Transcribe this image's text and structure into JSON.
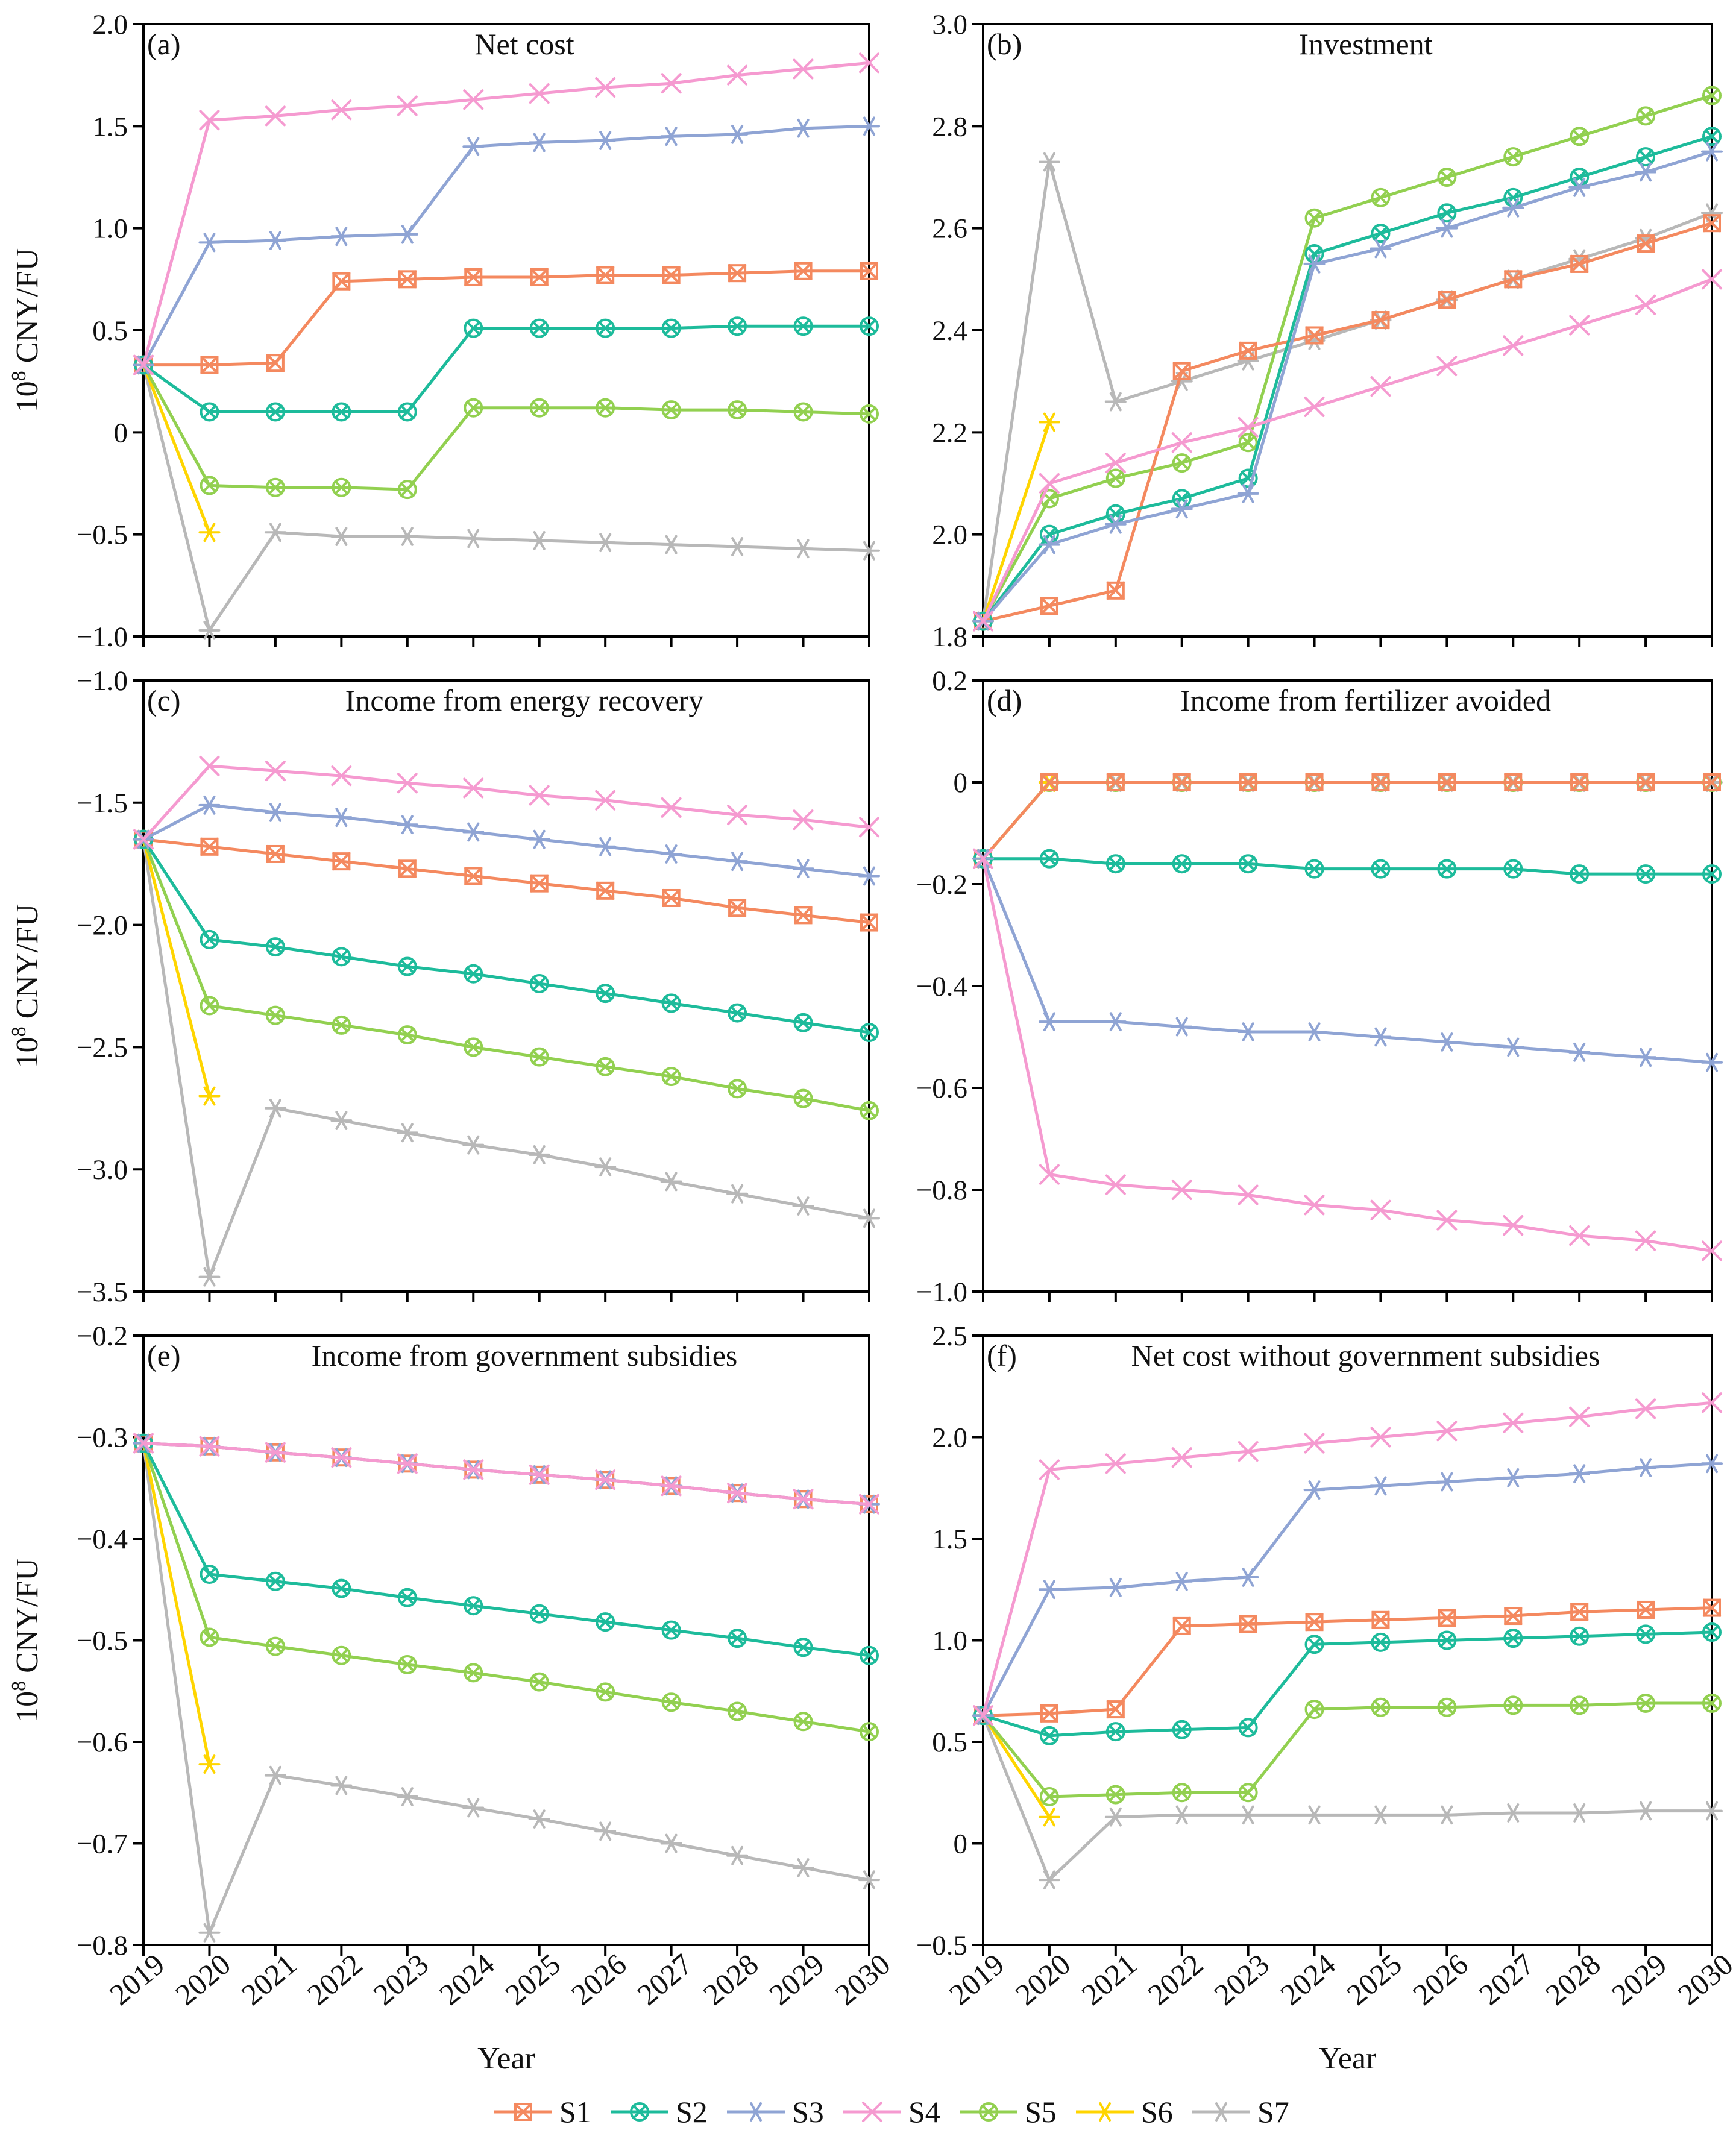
{
  "figure": {
    "xlabel": "Year",
    "ylabel_base": "10",
    "ylabel_sup": "8",
    "ylabel_unit": " CNY/FU"
  },
  "series_colors": {
    "S1": "#F4895F",
    "S2": "#1DBB9B",
    "S3": "#8FA4D4",
    "S4": "#F59AD0",
    "S5": "#92D050",
    "S6": "#FFD500",
    "S7": "#B8B8B8"
  },
  "series_markers": {
    "S1": "box-x",
    "S2": "circle-x",
    "S3": "star",
    "S4": "x",
    "S5": "circle-x",
    "S6": "star",
    "S7": "star"
  },
  "legend": [
    "S1",
    "S2",
    "S3",
    "S4",
    "S5",
    "S6",
    "S7"
  ],
  "chart_data": [
    {
      "panel": "a",
      "tag": "(a)",
      "title": "Net cost",
      "type": "line",
      "x": [
        2019,
        2020,
        2021,
        2022,
        2023,
        2024,
        2025,
        2026,
        2027,
        2028,
        2029,
        2030
      ],
      "ylim": [
        -1.0,
        2.0
      ],
      "yticks": [
        -1.0,
        -0.5,
        0,
        0.5,
        1.0,
        1.5,
        2.0
      ],
      "ytick_labels": [
        "−1.0",
        "−0.5",
        "0",
        "0.5",
        "1.0",
        "1.5",
        "2.0"
      ],
      "series": [
        {
          "name": "S1",
          "values": [
            0.33,
            0.33,
            0.34,
            0.74,
            0.75,
            0.76,
            0.76,
            0.77,
            0.77,
            0.78,
            0.79,
            0.79
          ]
        },
        {
          "name": "S2",
          "values": [
            0.33,
            0.1,
            0.1,
            0.1,
            0.1,
            0.51,
            0.51,
            0.51,
            0.51,
            0.52,
            0.52,
            0.52
          ]
        },
        {
          "name": "S3",
          "values": [
            0.33,
            0.93,
            0.94,
            0.96,
            0.97,
            1.4,
            1.42,
            1.43,
            1.45,
            1.46,
            1.49,
            1.5
          ]
        },
        {
          "name": "S4",
          "values": [
            0.33,
            1.53,
            1.55,
            1.58,
            1.6,
            1.63,
            1.66,
            1.69,
            1.71,
            1.75,
            1.78,
            1.81
          ]
        },
        {
          "name": "S5",
          "values": [
            0.33,
            -0.26,
            -0.27,
            -0.27,
            -0.28,
            0.12,
            0.12,
            0.12,
            0.11,
            0.11,
            0.1,
            0.09
          ]
        },
        {
          "name": "S6",
          "values": [
            0.33,
            -0.49,
            null,
            null,
            null,
            null,
            null,
            null,
            null,
            null,
            null,
            null
          ]
        },
        {
          "name": "S7",
          "values": [
            0.33,
            -0.97,
            -0.49,
            -0.51,
            -0.51,
            -0.52,
            -0.53,
            -0.54,
            -0.55,
            -0.56,
            -0.57,
            -0.58
          ]
        }
      ]
    },
    {
      "panel": "b",
      "tag": "(b)",
      "title": "Investment",
      "type": "line",
      "x": [
        2019,
        2020,
        2021,
        2022,
        2023,
        2024,
        2025,
        2026,
        2027,
        2028,
        2029,
        2030
      ],
      "ylim": [
        1.8,
        3.0
      ],
      "yticks": [
        1.8,
        2.0,
        2.2,
        2.4,
        2.6,
        2.8,
        3.0
      ],
      "ytick_labels": [
        "1.8",
        "2.0",
        "2.2",
        "2.4",
        "2.6",
        "2.8",
        "3.0"
      ],
      "series": [
        {
          "name": "S1",
          "values": [
            1.83,
            1.86,
            1.89,
            2.32,
            2.36,
            2.39,
            2.42,
            2.46,
            2.5,
            2.53,
            2.57,
            2.61
          ]
        },
        {
          "name": "S2",
          "values": [
            1.83,
            2.0,
            2.04,
            2.07,
            2.11,
            2.55,
            2.59,
            2.63,
            2.66,
            2.7,
            2.74,
            2.78
          ]
        },
        {
          "name": "S3",
          "values": [
            1.83,
            1.98,
            2.02,
            2.05,
            2.08,
            2.53,
            2.56,
            2.6,
            2.64,
            2.68,
            2.71,
            2.75
          ]
        },
        {
          "name": "S4",
          "values": [
            1.83,
            2.1,
            2.14,
            2.18,
            2.21,
            2.25,
            2.29,
            2.33,
            2.37,
            2.41,
            2.45,
            2.5
          ]
        },
        {
          "name": "S5",
          "values": [
            1.83,
            2.07,
            2.11,
            2.14,
            2.18,
            2.62,
            2.66,
            2.7,
            2.74,
            2.78,
            2.82,
            2.86
          ]
        },
        {
          "name": "S6",
          "values": [
            1.83,
            2.22,
            null,
            null,
            null,
            null,
            null,
            null,
            null,
            null,
            null,
            null
          ]
        },
        {
          "name": "S7",
          "values": [
            1.83,
            2.73,
            2.26,
            2.3,
            2.34,
            2.38,
            2.42,
            2.46,
            2.5,
            2.54,
            2.58,
            2.63
          ]
        }
      ]
    },
    {
      "panel": "c",
      "tag": "(c)",
      "title": "Income from energy recovery",
      "type": "line",
      "x": [
        2019,
        2020,
        2021,
        2022,
        2023,
        2024,
        2025,
        2026,
        2027,
        2028,
        2029,
        2030
      ],
      "ylim": [
        -3.5,
        -1.0
      ],
      "yticks": [
        -3.5,
        -3.0,
        -2.5,
        -2.0,
        -1.5,
        -1.0
      ],
      "ytick_labels": [
        "−3.5",
        "−3.0",
        "−2.5",
        "−2.0",
        "−1.5",
        "−1.0"
      ],
      "series": [
        {
          "name": "S1",
          "values": [
            -1.65,
            -1.68,
            -1.71,
            -1.74,
            -1.77,
            -1.8,
            -1.83,
            -1.86,
            -1.89,
            -1.93,
            -1.96,
            -1.99
          ]
        },
        {
          "name": "S2",
          "values": [
            -1.65,
            -2.06,
            -2.09,
            -2.13,
            -2.17,
            -2.2,
            -2.24,
            -2.28,
            -2.32,
            -2.36,
            -2.4,
            -2.44
          ]
        },
        {
          "name": "S3",
          "values": [
            -1.65,
            -1.51,
            -1.54,
            -1.56,
            -1.59,
            -1.62,
            -1.65,
            -1.68,
            -1.71,
            -1.74,
            -1.77,
            -1.8
          ]
        },
        {
          "name": "S4",
          "values": [
            -1.65,
            -1.35,
            -1.37,
            -1.39,
            -1.42,
            -1.44,
            -1.47,
            -1.49,
            -1.52,
            -1.55,
            -1.57,
            -1.6
          ]
        },
        {
          "name": "S5",
          "values": [
            -1.65,
            -2.33,
            -2.37,
            -2.41,
            -2.45,
            -2.5,
            -2.54,
            -2.58,
            -2.62,
            -2.67,
            -2.71,
            -2.76
          ]
        },
        {
          "name": "S6",
          "values": [
            -1.65,
            -2.7,
            null,
            null,
            null,
            null,
            null,
            null,
            null,
            null,
            null,
            null
          ]
        },
        {
          "name": "S7",
          "values": [
            -1.65,
            -3.44,
            -2.75,
            -2.8,
            -2.85,
            -2.9,
            -2.94,
            -2.99,
            -3.05,
            -3.1,
            -3.15,
            -3.2
          ]
        }
      ]
    },
    {
      "panel": "d",
      "tag": "(d)",
      "title": "Income from fertilizer avoided",
      "type": "line",
      "x": [
        2019,
        2020,
        2021,
        2022,
        2023,
        2024,
        2025,
        2026,
        2027,
        2028,
        2029,
        2030
      ],
      "ylim": [
        -1.0,
        0.2
      ],
      "yticks": [
        -1.0,
        -0.8,
        -0.6,
        -0.4,
        -0.2,
        0,
        0.2
      ],
      "ytick_labels": [
        "−1.0",
        "−0.8",
        "−0.6",
        "−0.4",
        "−0.2",
        "0",
        "0.2"
      ],
      "series": [
        {
          "name": "S1",
          "values": [
            -0.15,
            0,
            0,
            0,
            0,
            0,
            0,
            0,
            0,
            0,
            0,
            0
          ]
        },
        {
          "name": "S2",
          "values": [
            -0.15,
            -0.15,
            -0.16,
            -0.16,
            -0.16,
            -0.17,
            -0.17,
            -0.17,
            -0.17,
            -0.18,
            -0.18,
            -0.18
          ]
        },
        {
          "name": "S3",
          "values": [
            -0.15,
            -0.47,
            -0.47,
            -0.48,
            -0.49,
            -0.49,
            -0.5,
            -0.51,
            -0.52,
            -0.53,
            -0.54,
            -0.55
          ]
        },
        {
          "name": "S4",
          "values": [
            -0.15,
            -0.77,
            -0.79,
            -0.8,
            -0.81,
            -0.83,
            -0.84,
            -0.86,
            -0.87,
            -0.89,
            -0.9,
            -0.92
          ]
        },
        {
          "name": "S5",
          "values": [
            -0.15,
            0,
            0,
            0,
            0,
            0,
            0,
            0,
            0,
            0,
            0,
            0
          ]
        },
        {
          "name": "S6",
          "values": [
            -0.15,
            0,
            null,
            null,
            null,
            null,
            null,
            null,
            null,
            null,
            null,
            null
          ]
        },
        {
          "name": "S7",
          "values": [
            -0.15,
            0,
            0,
            0,
            0,
            0,
            0,
            0,
            0,
            0,
            0,
            0
          ]
        }
      ]
    },
    {
      "panel": "e",
      "tag": "(e)",
      "title": "Income from government subsidies",
      "type": "line",
      "x": [
        2019,
        2020,
        2021,
        2022,
        2023,
        2024,
        2025,
        2026,
        2027,
        2028,
        2029,
        2030
      ],
      "ylim": [
        -0.8,
        -0.2
      ],
      "yticks": [
        -0.8,
        -0.7,
        -0.6,
        -0.5,
        -0.4,
        -0.3,
        -0.2
      ],
      "ytick_labels": [
        "−0.8",
        "−0.7",
        "−0.6",
        "−0.5",
        "−0.4",
        "−0.3",
        "−0.2"
      ],
      "series": [
        {
          "name": "S1",
          "values": [
            -0.306,
            -0.309,
            -0.315,
            -0.32,
            -0.326,
            -0.332,
            -0.337,
            -0.342,
            -0.348,
            -0.355,
            -0.361,
            -0.366
          ]
        },
        {
          "name": "S2",
          "values": [
            -0.306,
            -0.435,
            -0.442,
            -0.449,
            -0.458,
            -0.466,
            -0.474,
            -0.482,
            -0.49,
            -0.498,
            -0.507,
            -0.515
          ]
        },
        {
          "name": "S3",
          "values": [
            -0.306,
            -0.309,
            -0.315,
            -0.32,
            -0.326,
            -0.332,
            -0.337,
            -0.342,
            -0.348,
            -0.355,
            -0.361,
            -0.366
          ]
        },
        {
          "name": "S4",
          "values": [
            -0.306,
            -0.309,
            -0.315,
            -0.32,
            -0.326,
            -0.332,
            -0.337,
            -0.342,
            -0.348,
            -0.355,
            -0.361,
            -0.366
          ]
        },
        {
          "name": "S5",
          "values": [
            -0.306,
            -0.497,
            -0.506,
            -0.515,
            -0.524,
            -0.532,
            -0.541,
            -0.551,
            -0.561,
            -0.57,
            -0.58,
            -0.59
          ]
        },
        {
          "name": "S6",
          "values": [
            -0.306,
            -0.622,
            null,
            null,
            null,
            null,
            null,
            null,
            null,
            null,
            null,
            null
          ]
        },
        {
          "name": "S7",
          "values": [
            -0.306,
            -0.788,
            -0.633,
            -0.643,
            -0.654,
            -0.665,
            -0.676,
            -0.688,
            -0.7,
            -0.712,
            -0.724,
            -0.736
          ]
        }
      ]
    },
    {
      "panel": "f",
      "tag": "(f)",
      "title": "Net cost without government subsidies",
      "type": "line",
      "x": [
        2019,
        2020,
        2021,
        2022,
        2023,
        2024,
        2025,
        2026,
        2027,
        2028,
        2029,
        2030
      ],
      "ylim": [
        -0.5,
        2.5
      ],
      "yticks": [
        -0.5,
        0,
        0.5,
        1.0,
        1.5,
        2.0,
        2.5
      ],
      "ytick_labels": [
        "−0.5",
        "0",
        "0.5",
        "1.0",
        "1.5",
        "2.0",
        "2.5"
      ],
      "series": [
        {
          "name": "S1",
          "values": [
            0.63,
            0.64,
            0.66,
            1.07,
            1.08,
            1.09,
            1.1,
            1.11,
            1.12,
            1.14,
            1.15,
            1.16
          ]
        },
        {
          "name": "S2",
          "values": [
            0.63,
            0.53,
            0.55,
            0.56,
            0.57,
            0.98,
            0.99,
            1.0,
            1.01,
            1.02,
            1.03,
            1.04
          ]
        },
        {
          "name": "S3",
          "values": [
            0.63,
            1.25,
            1.26,
            1.29,
            1.31,
            1.74,
            1.76,
            1.78,
            1.8,
            1.82,
            1.85,
            1.87
          ]
        },
        {
          "name": "S4",
          "values": [
            0.63,
            1.84,
            1.87,
            1.9,
            1.93,
            1.97,
            2.0,
            2.03,
            2.07,
            2.1,
            2.14,
            2.17
          ]
        },
        {
          "name": "S5",
          "values": [
            0.63,
            0.23,
            0.24,
            0.25,
            0.25,
            0.66,
            0.67,
            0.67,
            0.68,
            0.68,
            0.69,
            0.69
          ]
        },
        {
          "name": "S6",
          "values": [
            0.63,
            0.13,
            null,
            null,
            null,
            null,
            null,
            null,
            null,
            null,
            null,
            null
          ]
        },
        {
          "name": "S7",
          "values": [
            0.63,
            -0.18,
            0.13,
            0.14,
            0.14,
            0.14,
            0.14,
            0.14,
            0.15,
            0.15,
            0.16,
            0.16
          ]
        }
      ]
    }
  ]
}
